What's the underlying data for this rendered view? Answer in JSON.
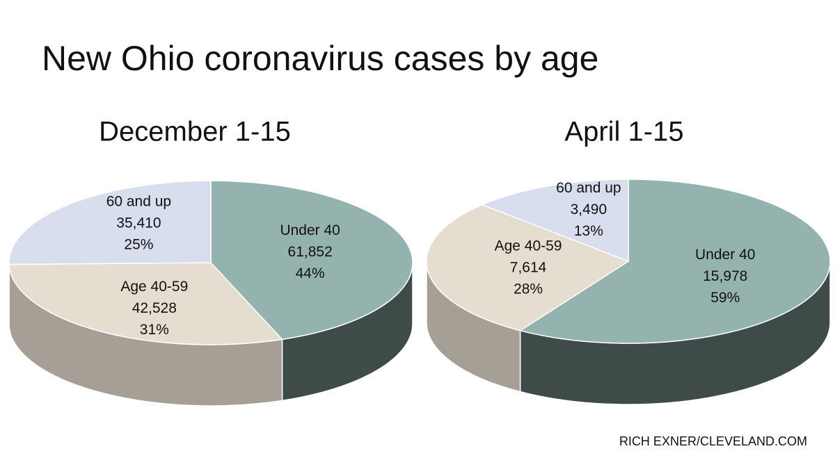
{
  "title": "New Ohio coronavirus cases by age",
  "credit": "RICH EXNER/CLEVELAND.COM",
  "chart_data": [
    {
      "type": "pie",
      "title": "December 1-15",
      "categories": [
        "Under 40",
        "Age 40-59",
        "60 and up"
      ],
      "values": [
        61852,
        42528,
        35410
      ],
      "value_labels": [
        "61,852",
        "42,528",
        "35,410"
      ],
      "percent_labels": [
        "44%",
        "31%",
        "25%"
      ],
      "colors": [
        "#94b3ae",
        "#e6ddd1",
        "#d9deee"
      ]
    },
    {
      "type": "pie",
      "title": "April 1-15",
      "categories": [
        "Under 40",
        "Age 40-59",
        "60 and up"
      ],
      "values": [
        15978,
        7614,
        3490
      ],
      "value_labels": [
        "15,978",
        "7,614",
        "3,490"
      ],
      "percent_labels": [
        "59%",
        "28%",
        "13%"
      ],
      "colors": [
        "#94b3ae",
        "#e6ddd1",
        "#d9deee"
      ]
    }
  ]
}
